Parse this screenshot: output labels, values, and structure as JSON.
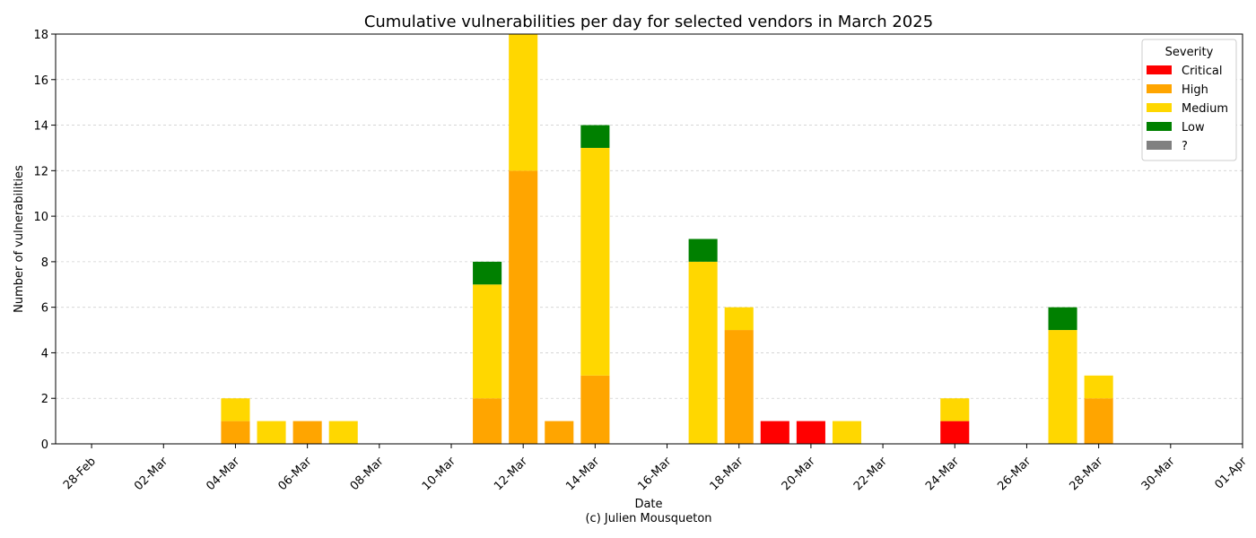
{
  "chart_data": {
    "type": "bar",
    "stacked": true,
    "title": "Cumulative vulnerabilities per day for selected vendors in March 2025",
    "xlabel": "Date",
    "caption": "(c) Julien Mousqueton",
    "ylabel": "Number of vulnerabilities",
    "ylim": [
      0,
      18
    ],
    "yticks": [
      0,
      2,
      4,
      6,
      8,
      10,
      12,
      14,
      16,
      18
    ],
    "xlim": [
      "2025-02-27",
      "2025-04-01"
    ],
    "xticks": [
      "28-Feb",
      "02-Mar",
      "04-Mar",
      "06-Mar",
      "08-Mar",
      "10-Mar",
      "12-Mar",
      "14-Mar",
      "16-Mar",
      "18-Mar",
      "20-Mar",
      "22-Mar",
      "24-Mar",
      "26-Mar",
      "28-Mar",
      "30-Mar",
      "01-Apr"
    ],
    "grid": "horizontal dashed",
    "legend": {
      "title": "Severity",
      "placement": "top-right"
    },
    "categories": [
      "2025-03-04",
      "2025-03-05",
      "2025-03-06",
      "2025-03-07",
      "2025-03-11",
      "2025-03-12",
      "2025-03-13",
      "2025-03-14",
      "2025-03-17",
      "2025-03-18",
      "2025-03-19",
      "2025-03-20",
      "2025-03-21",
      "2025-03-24",
      "2025-03-27",
      "2025-03-28"
    ],
    "series": [
      {
        "name": "Critical",
        "color": "#ff0000",
        "values": [
          0,
          0,
          0,
          0,
          0,
          0,
          0,
          0,
          0,
          0,
          1,
          1,
          0,
          1,
          0,
          0
        ]
      },
      {
        "name": "High",
        "color": "#ffa500",
        "values": [
          1,
          0,
          1,
          0,
          2,
          12,
          1,
          3,
          0,
          5,
          0,
          0,
          0,
          0,
          0,
          2
        ]
      },
      {
        "name": "Medium",
        "color": "#ffd700",
        "values": [
          1,
          1,
          0,
          1,
          5,
          6,
          0,
          10,
          8,
          1,
          0,
          0,
          1,
          1,
          5,
          1
        ]
      },
      {
        "name": "Low",
        "color": "#008000",
        "values": [
          0,
          0,
          0,
          0,
          1,
          0,
          0,
          1,
          1,
          0,
          0,
          0,
          0,
          0,
          1,
          0
        ]
      },
      {
        "name": "?",
        "color": "#808080",
        "values": [
          0,
          0,
          0,
          0,
          0,
          0,
          0,
          0,
          0,
          0,
          0,
          0,
          0,
          0,
          0,
          0
        ]
      }
    ]
  }
}
